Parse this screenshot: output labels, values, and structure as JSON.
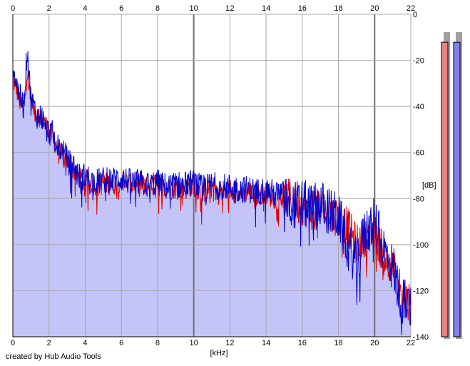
{
  "chart_data": {
    "type": "area",
    "xlabel": "[kHz]",
    "ylabel": "[dB]",
    "xlim": [
      0,
      22
    ],
    "ylim": [
      -140,
      0
    ],
    "x_ticks": [
      0,
      2,
      4,
      6,
      8,
      10,
      12,
      14,
      16,
      18,
      20,
      22
    ],
    "y_ticks": [
      0,
      -20,
      -40,
      -60,
      -80,
      -100,
      -120,
      -140
    ],
    "y_tick_labels": [
      "0",
      "-20",
      "-40",
      "-60",
      "-80",
      "-100",
      "-120",
      "-140"
    ],
    "grid": true,
    "series": [
      {
        "color": "#e00000",
        "x": [
          0,
          0.2,
          0.4,
          0.6,
          0.8,
          1.0,
          1.2,
          1.4,
          1.6,
          1.8,
          2.0,
          2.2,
          2.4,
          2.6,
          2.8,
          3.0,
          3.2,
          3.4,
          3.6,
          3.8,
          4.0,
          4.5,
          5.0,
          5.5,
          6.0,
          6.5,
          7.0,
          7.5,
          8.0,
          8.5,
          9.0,
          9.5,
          10.0,
          10.5,
          11.0,
          11.5,
          12.0,
          12.5,
          13.0,
          13.5,
          14.0,
          14.5,
          15.0,
          15.5,
          16.0,
          16.5,
          17.0,
          17.5,
          18.0,
          18.5,
          19.0,
          19.5,
          20.0,
          20.5,
          21.0,
          21.5,
          22.0
        ],
        "y": [
          -28,
          -32,
          -38,
          -40,
          -25,
          -36,
          -42,
          -44,
          -46,
          -48,
          -50,
          -54,
          -56,
          -60,
          -62,
          -64,
          -66,
          -68,
          -70,
          -72,
          -72,
          -74,
          -73,
          -74,
          -72,
          -74,
          -74,
          -75,
          -74,
          -76,
          -75,
          -76,
          -74,
          -78,
          -75,
          -77,
          -76,
          -78,
          -77,
          -78,
          -78,
          -80,
          -79,
          -82,
          -83,
          -85,
          -84,
          -86,
          -88,
          -92,
          -100,
          -96,
          -95,
          -105,
          -108,
          -124,
          -126
        ]
      },
      {
        "color": "#0000cc",
        "x": [
          0,
          0.2,
          0.4,
          0.6,
          0.8,
          1.0,
          1.2,
          1.4,
          1.6,
          1.8,
          2.0,
          2.2,
          2.4,
          2.6,
          2.8,
          3.0,
          3.2,
          3.4,
          3.6,
          3.8,
          4.0,
          4.5,
          5.0,
          5.5,
          6.0,
          6.5,
          7.0,
          7.5,
          8.0,
          8.5,
          9.0,
          9.5,
          10.0,
          10.5,
          11.0,
          11.5,
          12.0,
          12.5,
          13.0,
          13.5,
          14.0,
          14.5,
          15.0,
          15.5,
          16.0,
          16.5,
          17.0,
          17.5,
          18.0,
          18.5,
          19.0,
          19.5,
          20.0,
          20.5,
          21.0,
          21.5,
          22.0
        ],
        "y": [
          -22,
          -30,
          -36,
          -40,
          -14,
          -38,
          -41,
          -45,
          -44,
          -50,
          -51,
          -52,
          -57,
          -58,
          -60,
          -63,
          -65,
          -66,
          -70,
          -71,
          -70,
          -73,
          -72,
          -72,
          -71,
          -73,
          -73,
          -74,
          -73,
          -75,
          -74,
          -74,
          -73,
          -76,
          -74,
          -75,
          -75,
          -76,
          -76,
          -77,
          -76,
          -78,
          -78,
          -83,
          -82,
          -84,
          -82,
          -86,
          -88,
          -100,
          -108,
          -94,
          -90,
          -102,
          -110,
          -124,
          -128
        ]
      }
    ]
  },
  "meters": {
    "left_color": "#f08080",
    "right_color": "#8080f0",
    "left_level": 0.96,
    "right_level": 0.96
  },
  "footer": "created by Hub Audio Tools"
}
